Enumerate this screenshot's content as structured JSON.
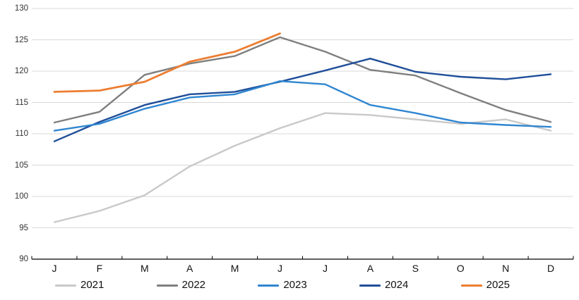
{
  "chart_data": {
    "type": "line",
    "title": "",
    "xlabel": "",
    "ylabel": "",
    "ylim": [
      90,
      130
    ],
    "ytick_step": 5,
    "grid": "horizontal",
    "legend_position": "bottom",
    "categories": [
      "J",
      "F",
      "M",
      "A",
      "M",
      "J",
      "J",
      "A",
      "S",
      "O",
      "N",
      "D"
    ],
    "y_tick_labels": [
      "90",
      "95",
      "100",
      "105",
      "110",
      "115",
      "120",
      "125",
      "130"
    ],
    "series": [
      {
        "name": "2021",
        "color": "#c9c9c9",
        "values": [
          95.9,
          97.7,
          100.2,
          104.8,
          108.1,
          110.9,
          113.3,
          113.0,
          112.3,
          111.6,
          112.3,
          110.5
        ]
      },
      {
        "name": "2022",
        "color": "#7f7f7f",
        "values": [
          111.8,
          113.5,
          119.4,
          121.2,
          122.4,
          125.4,
          123.1,
          120.2,
          119.3,
          116.5,
          113.8,
          111.9
        ]
      },
      {
        "name": "2023",
        "color": "#2f86d1",
        "values": [
          110.5,
          111.6,
          114.0,
          115.8,
          116.3,
          118.4,
          117.9,
          114.6,
          113.3,
          111.8,
          111.4,
          111.1
        ]
      },
      {
        "name": "2024",
        "color": "#1f4e99",
        "values": [
          108.8,
          111.9,
          114.6,
          116.3,
          116.7,
          118.3,
          120.1,
          122.0,
          119.9,
          119.1,
          118.7,
          119.5
        ]
      },
      {
        "name": "2025",
        "color": "#ed7d31",
        "values": [
          116.7,
          116.9,
          118.3,
          121.5,
          123.1,
          126.0
        ]
      }
    ],
    "colors": {
      "gridline": "#d9d9d9",
      "axis": "#000000",
      "tick_label": "#333333",
      "month_label": "#111111"
    }
  }
}
